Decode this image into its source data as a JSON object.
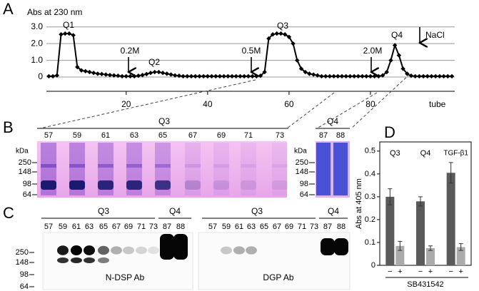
{
  "chart_data": [
    {
      "type": "line",
      "panel_label": "A",
      "ylabel": "Abs at 230 nm",
      "xlabel": "tube",
      "x": [
        1,
        2,
        3,
        4,
        5,
        6,
        7,
        8,
        9,
        10,
        11,
        12,
        13,
        14,
        15,
        16,
        17,
        18,
        19,
        20,
        21,
        22,
        23,
        24,
        25,
        26,
        27,
        28,
        29,
        30,
        31,
        32,
        33,
        34,
        35,
        36,
        37,
        38,
        39,
        40,
        41,
        42,
        43,
        44,
        45,
        46,
        47,
        48,
        49,
        50,
        51,
        52,
        53,
        54,
        55,
        56,
        57,
        58,
        59,
        60,
        61,
        62,
        63,
        64,
        65,
        66,
        67,
        68,
        69,
        70,
        71,
        72,
        73,
        74,
        75,
        76,
        77,
        78,
        79,
        80,
        81,
        82,
        83,
        84,
        85,
        86,
        87,
        88,
        89,
        90,
        91,
        92,
        93,
        94,
        95,
        96,
        97,
        98,
        99,
        100
      ],
      "series": [
        {
          "color": "#000000",
          "values": [
            0.05,
            0.05,
            0.1,
            2.55,
            2.6,
            2.6,
            2.5,
            0.6,
            0.4,
            0.35,
            0.3,
            0.25,
            0.2,
            0.18,
            0.15,
            0.12,
            0.1,
            0.08,
            0.05,
            0.05,
            0.05,
            0.05,
            0.08,
            0.12,
            0.18,
            0.25,
            0.3,
            0.3,
            0.25,
            0.2,
            0.15,
            0.1,
            0.08,
            0.05,
            0.05,
            0.05,
            0.05,
            0.05,
            0.05,
            0.05,
            0.05,
            0.05,
            0.05,
            0.05,
            0.05,
            0.05,
            0.05,
            0.05,
            0.05,
            0.05,
            0.05,
            0.05,
            0.08,
            0.3,
            2.3,
            2.55,
            2.6,
            2.6,
            2.55,
            2.4,
            2.0,
            1.0,
            0.5,
            0.3,
            0.2,
            0.15,
            0.1,
            0.05,
            0.05,
            0.05,
            0.05,
            0.05,
            0.05,
            0.05,
            0.05,
            0.05,
            0.05,
            0.05,
            0.05,
            0.05,
            0.05,
            0.05,
            0.1,
            0.3,
            1.0,
            1.9,
            1.3,
            0.5,
            0.2,
            0.08,
            0.05,
            0.05,
            0.05,
            0.05,
            0.05,
            0.05,
            0.05,
            0.05,
            0.05,
            0.05
          ]
        }
      ],
      "xlim": [
        0.4,
        100.7
      ],
      "xticks": [
        20,
        40,
        60,
        80
      ],
      "ylim": [
        -0.85,
        3.2
      ],
      "yticks": [
        0,
        {
          "value": 1,
          "label": "1.0"
        },
        {
          "value": 2,
          "label": "2.0"
        },
        {
          "value": 3,
          "label": "3.0"
        }
      ],
      "grid": true,
      "annotations": [
        "Q1",
        "Q2",
        "Q3",
        "Q4",
        "0.2M",
        "0.5M",
        "2.0M",
        "NaCl"
      ]
    },
    {
      "type": "bar",
      "panel_label": "D",
      "ylabel": "Abs at 405 nm",
      "xlabel": "SB431542",
      "categories": [
        "Q3",
        "Q4",
        "TGF-β1"
      ],
      "series": [
        {
          "name": "−",
          "color": "#5a5a5a",
          "values": [
            0.3,
            0.28,
            0.405
          ],
          "errors": [
            0.035,
            0.02,
            0.045
          ]
        },
        {
          "name": "+",
          "color": "#ababab",
          "values": [
            0.085,
            0.075,
            0.08
          ],
          "errors": [
            0.02,
            0.01,
            0.015
          ]
        }
      ],
      "ylim": [
        0,
        0.54
      ],
      "yticks": [
        0,
        0.1,
        0.2,
        0.3,
        0.4,
        0.5
      ]
    }
  ],
  "gels": {
    "B": {
      "letter": "B",
      "q3_label": "Q3",
      "q3_lanes": [
        57,
        59,
        61,
        63,
        65,
        67,
        69,
        71,
        73
      ],
      "q4_label": "Q4",
      "q4_lanes": [
        87,
        88
      ],
      "kda": "kDa",
      "markers": [
        250,
        148,
        98,
        64
      ]
    },
    "C": {
      "letter": "C",
      "blots": [
        {
          "q3_label": "Q3",
          "q3_lanes": [
            57,
            59,
            61,
            63,
            65,
            67,
            69,
            71,
            73
          ],
          "q4_label": "Q4",
          "q4_lanes": [
            87,
            88
          ],
          "markers": [
            250,
            148,
            98,
            64
          ],
          "antibody": "N-DSP Ab"
        },
        {
          "q3_label": "Q3",
          "q3_lanes": [
            57,
            59,
            61,
            63,
            65,
            67,
            69,
            71,
            73
          ],
          "q4_label": "Q4",
          "q4_lanes": [
            87,
            88
          ],
          "antibody": "DGP Ab"
        }
      ]
    }
  }
}
